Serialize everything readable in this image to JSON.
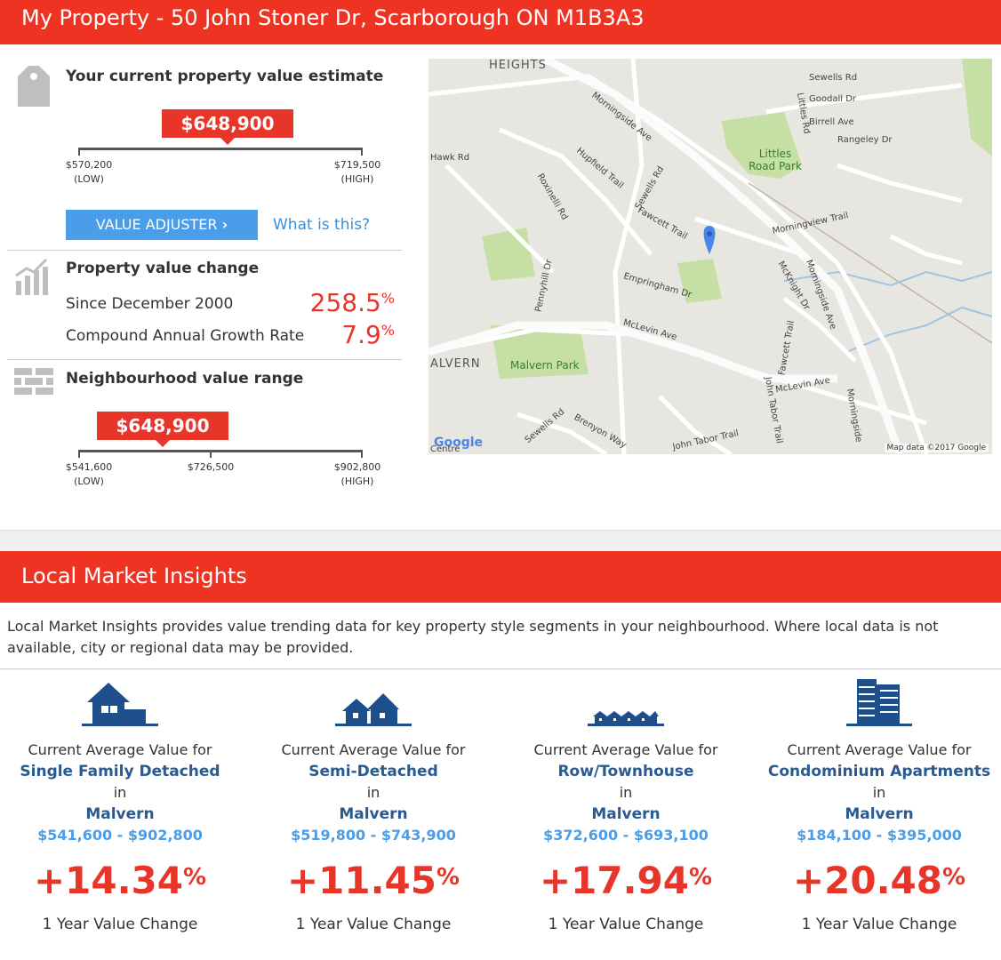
{
  "header": {
    "title": "My Property - 50 John Stoner Dr, Scarborough ON M1B3A3"
  },
  "estimate": {
    "title": "Your current property value estimate",
    "value": "$648,900",
    "low_value": "$570,200",
    "low_label": "(LOW)",
    "high_value": "$719,500",
    "high_label": "(HIGH)",
    "adjuster_label": "VALUE ADJUSTER",
    "what_is_this": "What is this?"
  },
  "change": {
    "title": "Property value change",
    "since_label": "Since December 2000",
    "since_value": "258.5",
    "cagr_label": "Compound Annual Growth Rate",
    "cagr_value": "7.9",
    "pct": "%"
  },
  "neighbourhood": {
    "title": "Neighbourhood value range",
    "value": "$648,900",
    "low_value": "$541,600",
    "low_label": "(LOW)",
    "mid_value": "$726,500",
    "high_value": "$902,800",
    "high_label": "(HIGH)"
  },
  "map": {
    "labels": [
      "HEIGHTS",
      "Sewells Rd",
      "Goodall Dr",
      "Littles Rd",
      "Birrell Ave",
      "Rangeley Dr",
      "Littles Road Park",
      "Morningside Ave",
      "Hawk Rd",
      "Hupfield Trail",
      "Sewells Rd",
      "Fawcett Trail",
      "Roxinelli Rd",
      "Morningview Trail",
      "Pennyhill Dr",
      "Empringham Dr",
      "McKnight Dr",
      "McLevin Ave",
      "ALVERN",
      "Malvern Park",
      "Fawcett Trail",
      "McLevin Ave",
      "John Tabor Trail",
      "Sewells Rd",
      "Brenyon Way",
      "John Tabor Trail",
      "Morningside",
      "Morningside Ave"
    ],
    "attribution": "Map data ©2017 Google",
    "google": "Google",
    "centre": "Centre"
  },
  "insights": {
    "title": "Local Market Insights",
    "intro": "Local Market Insights provides value trending data for key property style segments in your neighbourhood. Where local data is not available, city or regional data may be provided.",
    "prefix": "Current Average Value for",
    "in": "in",
    "change_label": "1 Year Value Change",
    "pct": "%",
    "columns": [
      {
        "type": "Single Family Detached",
        "area": "Malvern",
        "range": "$541,600 - $902,800",
        "change": "+14.34",
        "icon": "detached-house-icon"
      },
      {
        "type": "Semi-Detached",
        "area": "Malvern",
        "range": "$519,800 - $743,900",
        "change": "+11.45",
        "icon": "semi-detached-icon"
      },
      {
        "type": "Row/Townhouse",
        "area": "Malvern",
        "range": "$372,600 - $693,100",
        "change": "+17.94",
        "icon": "townhouse-icon"
      },
      {
        "type": "Condominium Apartments",
        "area": "Malvern",
        "range": "$184,100 - $395,000",
        "change": "+20.48",
        "icon": "condo-building-icon"
      }
    ]
  },
  "colors": {
    "brand_red": "#ef3323",
    "accent_blue": "#4a9de8",
    "dark_blue": "#2a5a8f"
  }
}
